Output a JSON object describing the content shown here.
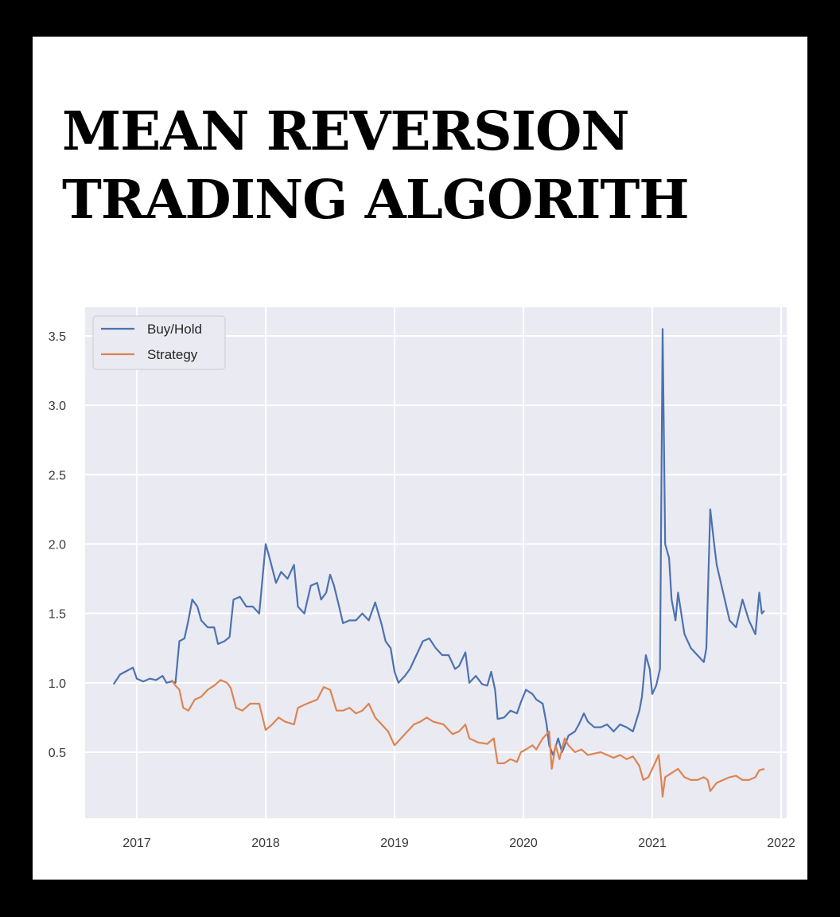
{
  "title": {
    "line1": "MEAN REVERSION",
    "line2": "TRADING ALGORITH"
  },
  "chart_data": {
    "type": "line",
    "xlabel": "",
    "ylabel": "",
    "xlim": [
      2016.6,
      2022.1
    ],
    "ylim": [
      0.02,
      3.7
    ],
    "x_ticks": [
      2017,
      2018,
      2019,
      2020,
      2021,
      2022
    ],
    "x_tick_labels": [
      "2017",
      "2018",
      "2019",
      "2020",
      "2021",
      "2022"
    ],
    "y_ticks": [
      0.5,
      1.0,
      1.5,
      2.0,
      2.5,
      3.0,
      3.5
    ],
    "y_tick_labels": [
      "0.5",
      "1.0",
      "1.5",
      "2.0",
      "2.5",
      "3.0",
      "3.5"
    ],
    "grid": true,
    "legend_position": "top-left",
    "background_color": "#eaeaf2",
    "series": [
      {
        "name": "Buy/Hold",
        "color": "#4c72b0",
        "points": [
          [
            2016.82,
            0.99
          ],
          [
            2016.87,
            1.06
          ],
          [
            2016.93,
            1.09
          ],
          [
            2016.97,
            1.11
          ],
          [
            2017.0,
            1.03
          ],
          [
            2017.05,
            1.01
          ],
          [
            2017.1,
            1.03
          ],
          [
            2017.15,
            1.02
          ],
          [
            2017.2,
            1.05
          ],
          [
            2017.23,
            1.0
          ],
          [
            2017.27,
            1.01
          ],
          [
            2017.3,
            1.0
          ],
          [
            2017.33,
            1.3
          ],
          [
            2017.37,
            1.32
          ],
          [
            2017.4,
            1.45
          ],
          [
            2017.43,
            1.6
          ],
          [
            2017.47,
            1.55
          ],
          [
            2017.5,
            1.45
          ],
          [
            2017.55,
            1.4
          ],
          [
            2017.6,
            1.4
          ],
          [
            2017.63,
            1.28
          ],
          [
            2017.68,
            1.3
          ],
          [
            2017.72,
            1.33
          ],
          [
            2017.75,
            1.6
          ],
          [
            2017.8,
            1.62
          ],
          [
            2017.85,
            1.55
          ],
          [
            2017.9,
            1.55
          ],
          [
            2017.95,
            1.5
          ],
          [
            2018.0,
            2.0
          ],
          [
            2018.03,
            1.9
          ],
          [
            2018.08,
            1.72
          ],
          [
            2018.12,
            1.8
          ],
          [
            2018.17,
            1.75
          ],
          [
            2018.22,
            1.85
          ],
          [
            2018.25,
            1.55
          ],
          [
            2018.3,
            1.5
          ],
          [
            2018.35,
            1.7
          ],
          [
            2018.4,
            1.72
          ],
          [
            2018.43,
            1.6
          ],
          [
            2018.47,
            1.65
          ],
          [
            2018.5,
            1.78
          ],
          [
            2018.53,
            1.7
          ],
          [
            2018.57,
            1.55
          ],
          [
            2018.6,
            1.43
          ],
          [
            2018.65,
            1.45
          ],
          [
            2018.7,
            1.45
          ],
          [
            2018.75,
            1.5
          ],
          [
            2018.8,
            1.45
          ],
          [
            2018.85,
            1.58
          ],
          [
            2018.9,
            1.42
          ],
          [
            2018.93,
            1.3
          ],
          [
            2018.97,
            1.25
          ],
          [
            2019.0,
            1.08
          ],
          [
            2019.03,
            1.0
          ],
          [
            2019.08,
            1.05
          ],
          [
            2019.12,
            1.1
          ],
          [
            2019.17,
            1.2
          ],
          [
            2019.22,
            1.3
          ],
          [
            2019.27,
            1.32
          ],
          [
            2019.32,
            1.25
          ],
          [
            2019.37,
            1.2
          ],
          [
            2019.42,
            1.2
          ],
          [
            2019.47,
            1.1
          ],
          [
            2019.5,
            1.12
          ],
          [
            2019.55,
            1.22
          ],
          [
            2019.58,
            1.0
          ],
          [
            2019.63,
            1.05
          ],
          [
            2019.68,
            0.99
          ],
          [
            2019.72,
            0.98
          ],
          [
            2019.75,
            1.08
          ],
          [
            2019.78,
            0.95
          ],
          [
            2019.8,
            0.74
          ],
          [
            2019.85,
            0.75
          ],
          [
            2019.9,
            0.8
          ],
          [
            2019.95,
            0.78
          ],
          [
            2019.98,
            0.86
          ],
          [
            2020.02,
            0.95
          ],
          [
            2020.07,
            0.92
          ],
          [
            2020.1,
            0.88
          ],
          [
            2020.15,
            0.85
          ],
          [
            2020.18,
            0.7
          ],
          [
            2020.2,
            0.55
          ],
          [
            2020.23,
            0.48
          ],
          [
            2020.27,
            0.6
          ],
          [
            2020.3,
            0.5
          ],
          [
            2020.35,
            0.62
          ],
          [
            2020.4,
            0.65
          ],
          [
            2020.43,
            0.7
          ],
          [
            2020.47,
            0.78
          ],
          [
            2020.5,
            0.72
          ],
          [
            2020.55,
            0.68
          ],
          [
            2020.6,
            0.68
          ],
          [
            2020.65,
            0.7
          ],
          [
            2020.7,
            0.65
          ],
          [
            2020.75,
            0.7
          ],
          [
            2020.8,
            0.68
          ],
          [
            2020.85,
            0.65
          ],
          [
            2020.9,
            0.8
          ],
          [
            2020.92,
            0.9
          ],
          [
            2020.95,
            1.2
          ],
          [
            2020.98,
            1.1
          ],
          [
            2021.0,
            0.92
          ],
          [
            2021.03,
            0.98
          ],
          [
            2021.06,
            1.1
          ],
          [
            2021.08,
            3.55
          ],
          [
            2021.1,
            2.0
          ],
          [
            2021.13,
            1.9
          ],
          [
            2021.15,
            1.6
          ],
          [
            2021.18,
            1.45
          ],
          [
            2021.2,
            1.65
          ],
          [
            2021.25,
            1.35
          ],
          [
            2021.3,
            1.25
          ],
          [
            2021.35,
            1.2
          ],
          [
            2021.4,
            1.15
          ],
          [
            2021.42,
            1.25
          ],
          [
            2021.45,
            2.25
          ],
          [
            2021.48,
            2.0
          ],
          [
            2021.5,
            1.85
          ],
          [
            2021.55,
            1.65
          ],
          [
            2021.6,
            1.45
          ],
          [
            2021.65,
            1.4
          ],
          [
            2021.7,
            1.6
          ],
          [
            2021.75,
            1.45
          ],
          [
            2021.8,
            1.35
          ],
          [
            2021.83,
            1.65
          ],
          [
            2021.85,
            1.5
          ],
          [
            2021.87,
            1.52
          ]
        ]
      },
      {
        "name": "Strategy",
        "color": "#dd8452",
        "points": [
          [
            2017.27,
            1.02
          ],
          [
            2017.3,
            0.98
          ],
          [
            2017.33,
            0.95
          ],
          [
            2017.36,
            0.82
          ],
          [
            2017.4,
            0.8
          ],
          [
            2017.45,
            0.88
          ],
          [
            2017.5,
            0.9
          ],
          [
            2017.55,
            0.95
          ],
          [
            2017.6,
            0.98
          ],
          [
            2017.65,
            1.02
          ],
          [
            2017.7,
            1.0
          ],
          [
            2017.73,
            0.96
          ],
          [
            2017.77,
            0.82
          ],
          [
            2017.82,
            0.8
          ],
          [
            2017.88,
            0.85
          ],
          [
            2017.95,
            0.85
          ],
          [
            2018.0,
            0.66
          ],
          [
            2018.05,
            0.7
          ],
          [
            2018.1,
            0.75
          ],
          [
            2018.15,
            0.72
          ],
          [
            2018.22,
            0.7
          ],
          [
            2018.25,
            0.82
          ],
          [
            2018.32,
            0.85
          ],
          [
            2018.4,
            0.88
          ],
          [
            2018.45,
            0.97
          ],
          [
            2018.5,
            0.95
          ],
          [
            2018.55,
            0.8
          ],
          [
            2018.6,
            0.8
          ],
          [
            2018.65,
            0.82
          ],
          [
            2018.7,
            0.78
          ],
          [
            2018.75,
            0.8
          ],
          [
            2018.8,
            0.85
          ],
          [
            2018.85,
            0.75
          ],
          [
            2018.9,
            0.7
          ],
          [
            2018.95,
            0.65
          ],
          [
            2019.0,
            0.55
          ],
          [
            2019.05,
            0.6
          ],
          [
            2019.1,
            0.65
          ],
          [
            2019.15,
            0.7
          ],
          [
            2019.2,
            0.72
          ],
          [
            2019.25,
            0.75
          ],
          [
            2019.3,
            0.72
          ],
          [
            2019.38,
            0.7
          ],
          [
            2019.45,
            0.63
          ],
          [
            2019.5,
            0.65
          ],
          [
            2019.55,
            0.7
          ],
          [
            2019.58,
            0.6
          ],
          [
            2019.65,
            0.57
          ],
          [
            2019.72,
            0.56
          ],
          [
            2019.77,
            0.6
          ],
          [
            2019.8,
            0.42
          ],
          [
            2019.85,
            0.42
          ],
          [
            2019.9,
            0.45
          ],
          [
            2019.95,
            0.43
          ],
          [
            2019.98,
            0.5
          ],
          [
            2020.02,
            0.52
          ],
          [
            2020.07,
            0.55
          ],
          [
            2020.1,
            0.52
          ],
          [
            2020.15,
            0.6
          ],
          [
            2020.2,
            0.65
          ],
          [
            2020.22,
            0.38
          ],
          [
            2020.25,
            0.55
          ],
          [
            2020.28,
            0.45
          ],
          [
            2020.32,
            0.6
          ],
          [
            2020.35,
            0.55
          ],
          [
            2020.4,
            0.5
          ],
          [
            2020.45,
            0.52
          ],
          [
            2020.5,
            0.48
          ],
          [
            2020.55,
            0.49
          ],
          [
            2020.6,
            0.5
          ],
          [
            2020.65,
            0.48
          ],
          [
            2020.7,
            0.46
          ],
          [
            2020.75,
            0.48
          ],
          [
            2020.8,
            0.45
          ],
          [
            2020.85,
            0.47
          ],
          [
            2020.9,
            0.4
          ],
          [
            2020.93,
            0.3
          ],
          [
            2020.97,
            0.32
          ],
          [
            2021.0,
            0.38
          ],
          [
            2021.05,
            0.48
          ],
          [
            2021.07,
            0.3
          ],
          [
            2021.08,
            0.18
          ],
          [
            2021.1,
            0.32
          ],
          [
            2021.15,
            0.35
          ],
          [
            2021.2,
            0.38
          ],
          [
            2021.25,
            0.32
          ],
          [
            2021.3,
            0.3
          ],
          [
            2021.35,
            0.3
          ],
          [
            2021.4,
            0.32
          ],
          [
            2021.43,
            0.3
          ],
          [
            2021.45,
            0.22
          ],
          [
            2021.5,
            0.28
          ],
          [
            2021.55,
            0.3
          ],
          [
            2021.6,
            0.32
          ],
          [
            2021.65,
            0.33
          ],
          [
            2021.7,
            0.3
          ],
          [
            2021.75,
            0.3
          ],
          [
            2021.8,
            0.32
          ],
          [
            2021.83,
            0.37
          ],
          [
            2021.87,
            0.38
          ]
        ]
      }
    ]
  }
}
